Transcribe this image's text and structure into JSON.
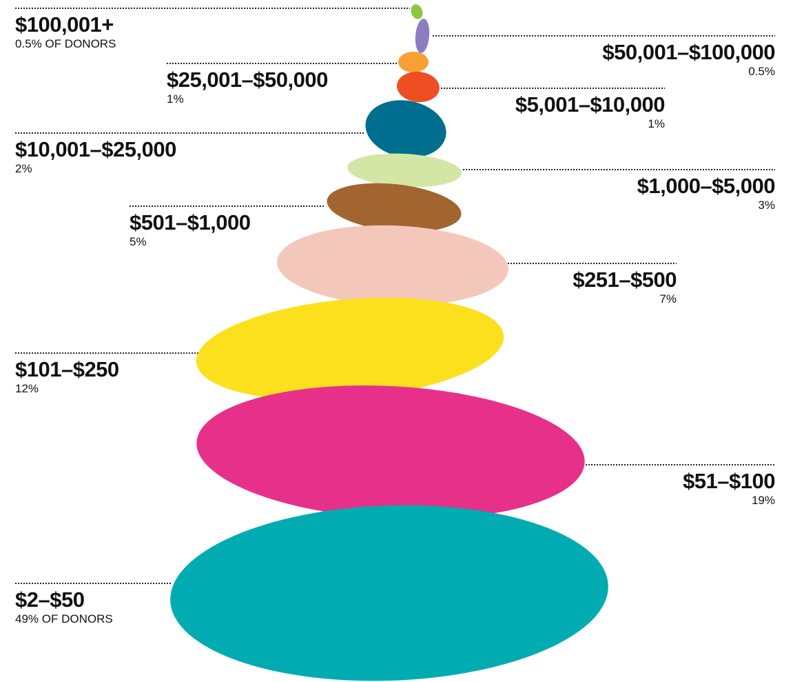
{
  "tiers": [
    {
      "range": "$100,001+",
      "share": "0.5% OF DONORS"
    },
    {
      "range": "$50,001–$100,000",
      "share": "0.5%"
    },
    {
      "range": "$25,001–$50,000",
      "share": "1%"
    },
    {
      "range": "$5,001–$10,000",
      "share": "1%"
    },
    {
      "range": "$10,001–$25,000",
      "share": "2%"
    },
    {
      "range": "$1,000–$5,000",
      "share": "3%"
    },
    {
      "range": "$501–$1,000",
      "share": "5%"
    },
    {
      "range": "$251–$500",
      "share": "7%"
    },
    {
      "range": "$101–$250",
      "share": "12%"
    },
    {
      "range": "$51–$100",
      "share": "19%"
    },
    {
      "range": "$2–$50",
      "share": "49% OF DONORS"
    }
  ]
}
